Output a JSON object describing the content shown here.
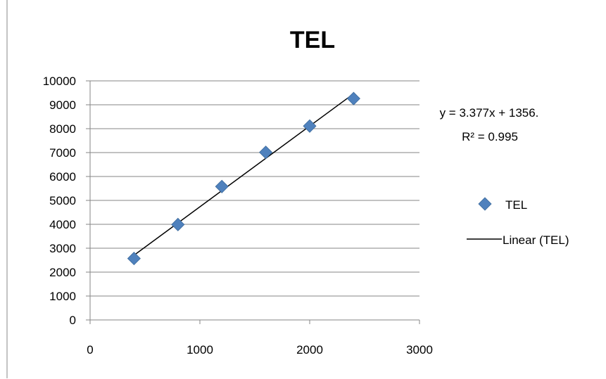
{
  "chart_data": {
    "type": "scatter",
    "title": "TEL",
    "xlabel": "",
    "ylabel": "",
    "xlim": [
      0,
      3000
    ],
    "ylim": [
      0,
      10000
    ],
    "x_ticks": [
      0,
      1000,
      2000,
      3000
    ],
    "y_ticks": [
      0,
      1000,
      2000,
      3000,
      4000,
      5000,
      6000,
      7000,
      8000,
      9000,
      10000
    ],
    "grid": "horizontal",
    "legend_position": "right",
    "series": [
      {
        "name": "TEL",
        "color": "#4f81bd",
        "marker": "diamond",
        "x": [
          400,
          800,
          1200,
          1600,
          2000,
          2400
        ],
        "y": [
          2570,
          3990,
          5580,
          7010,
          8110,
          9260
        ]
      }
    ],
    "trendline": {
      "name": "Linear (TEL)",
      "color": "#000000",
      "slope": 3.377,
      "intercept": 1356,
      "x_range": [
        400,
        2400
      ]
    },
    "annotations": {
      "equation": "y = 3.377x + 1356.",
      "r_squared": "R² = 0.995"
    }
  }
}
